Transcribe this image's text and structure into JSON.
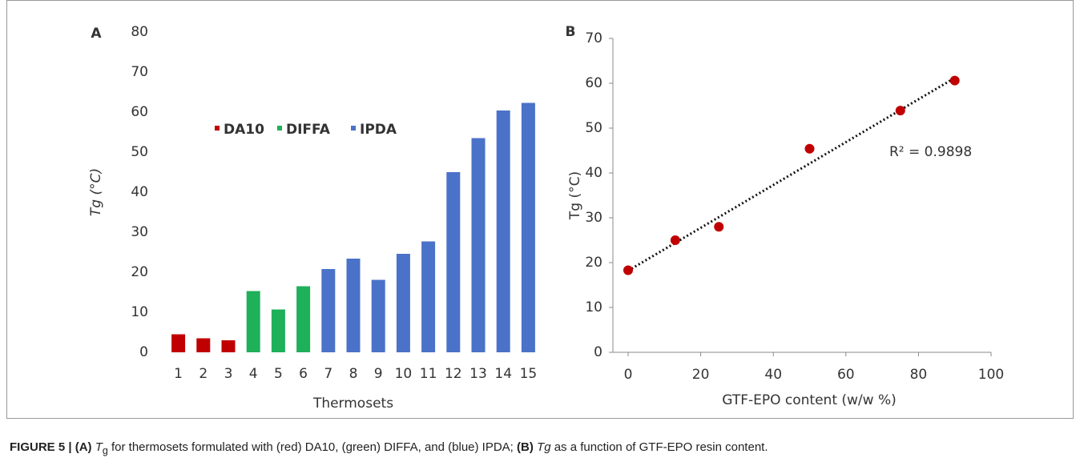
{
  "chart_data": [
    {
      "type": "bar",
      "panel": "A",
      "categories": [
        "1",
        "2",
        "3",
        "4",
        "5",
        "6",
        "7",
        "8",
        "9",
        "10",
        "11",
        "12",
        "13",
        "14",
        "15"
      ],
      "series": [
        {
          "name": "DA10",
          "color": "#c00000",
          "values": [
            4.5,
            3.5,
            3,
            null,
            null,
            null,
            null,
            null,
            null,
            null,
            null,
            null,
            null,
            null,
            null
          ]
        },
        {
          "name": "DIFFA",
          "color": "#1fb05a",
          "values": [
            null,
            null,
            null,
            15.3,
            10.7,
            16.5,
            null,
            null,
            null,
            null,
            null,
            null,
            null,
            null,
            null
          ]
        },
        {
          "name": "IPDA",
          "color": "#4a72c8",
          "values": [
            null,
            null,
            null,
            null,
            null,
            null,
            20.8,
            23.4,
            18.1,
            24.6,
            27.7,
            45,
            53.5,
            60.4,
            62.3
          ]
        }
      ],
      "ylim": [
        0,
        80
      ],
      "yticks": [
        0,
        10,
        20,
        30,
        40,
        50,
        60,
        70,
        80
      ],
      "y_label": "Tg (°C)",
      "x_label": "Thermosets"
    },
    {
      "type": "scatter",
      "panel": "B",
      "x": [
        0,
        13,
        25,
        50,
        75,
        90
      ],
      "y": [
        18.3,
        25,
        28,
        45.4,
        53.9,
        60.6
      ],
      "color": "#c00000",
      "trendline": {
        "x": [
          0,
          90
        ],
        "y": [
          18.2,
          61.2
        ]
      },
      "annotation": "R² = 0.9898",
      "xlim": [
        0,
        100
      ],
      "xticks": [
        0,
        20,
        40,
        60,
        80,
        100
      ],
      "ylim": [
        0,
        70
      ],
      "yticks": [
        0,
        10,
        20,
        30,
        40,
        50,
        60,
        70
      ],
      "y_label": "Tg (°C)",
      "x_label": "GTF-EPO content (w/w %)"
    }
  ],
  "caption": [
    "FIGURE 5 | (A) ",
    "T",
    "g",
    " for thermosets formulated with (red) DA10, (green) DIFFA, and (blue) IPDA; ",
    "(B) ",
    "Tg",
    " as a function of GTF-EPO resin content."
  ]
}
